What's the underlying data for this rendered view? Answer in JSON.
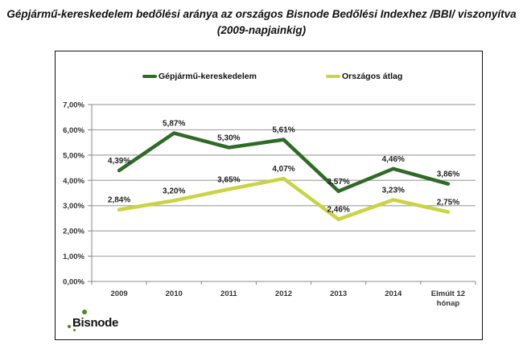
{
  "title_line1": "Gépjármű-kereskedelem bedőlési aránya az országos Bisnode Bedőlési Indexhez /BBI/ viszonyítva",
  "title_line2": "(2009-napjainkig)",
  "logo": {
    "text": "Bisnode",
    "icon": "bisnode-dots-icon"
  },
  "colors": {
    "series1": "#2f6a27",
    "series2": "#c9d443",
    "grid": "#a6a6a6",
    "axis": "#888888"
  },
  "chart_data": {
    "type": "line",
    "title": "Gépjármű-kereskedelem bedőlési aránya az országos Bisnode Bedőlési Indexhez /BBI/ viszonyítva (2009-napjainkig)",
    "xlabel": "",
    "ylabel": "",
    "categories": [
      "2009",
      "2010",
      "2011",
      "2012",
      "2013",
      "2014",
      "Elmúlt 12 hónap"
    ],
    "category_lines": [
      [
        "2009"
      ],
      [
        "2010"
      ],
      [
        "2011"
      ],
      [
        "2012"
      ],
      [
        "2013"
      ],
      [
        "2014"
      ],
      [
        "Elmúlt 12",
        "hónap"
      ]
    ],
    "ylim": [
      0,
      7
    ],
    "yticks": [
      0,
      1,
      2,
      3,
      4,
      5,
      6,
      7
    ],
    "ytick_labels": [
      "0,00%",
      "1,00%",
      "2,00%",
      "3,00%",
      "4,00%",
      "5,00%",
      "6,00%",
      "7,00%"
    ],
    "grid": true,
    "legend_position": "top",
    "series": [
      {
        "name": "Gépjármű-kereskedelem",
        "values": [
          4.39,
          5.87,
          5.3,
          5.61,
          3.57,
          4.46,
          3.86
        ],
        "labels": [
          "4,39%",
          "5,87%",
          "5,30%",
          "5,61%",
          "3,57%",
          "4,46%",
          "3,86%"
        ]
      },
      {
        "name": "Országos átlag",
        "values": [
          2.84,
          3.2,
          3.65,
          4.07,
          2.46,
          3.23,
          2.75
        ],
        "labels": [
          "2,84%",
          "3,20%",
          "3,65%",
          "4,07%",
          "2,46%",
          "3,23%",
          "2,75%"
        ]
      }
    ]
  }
}
